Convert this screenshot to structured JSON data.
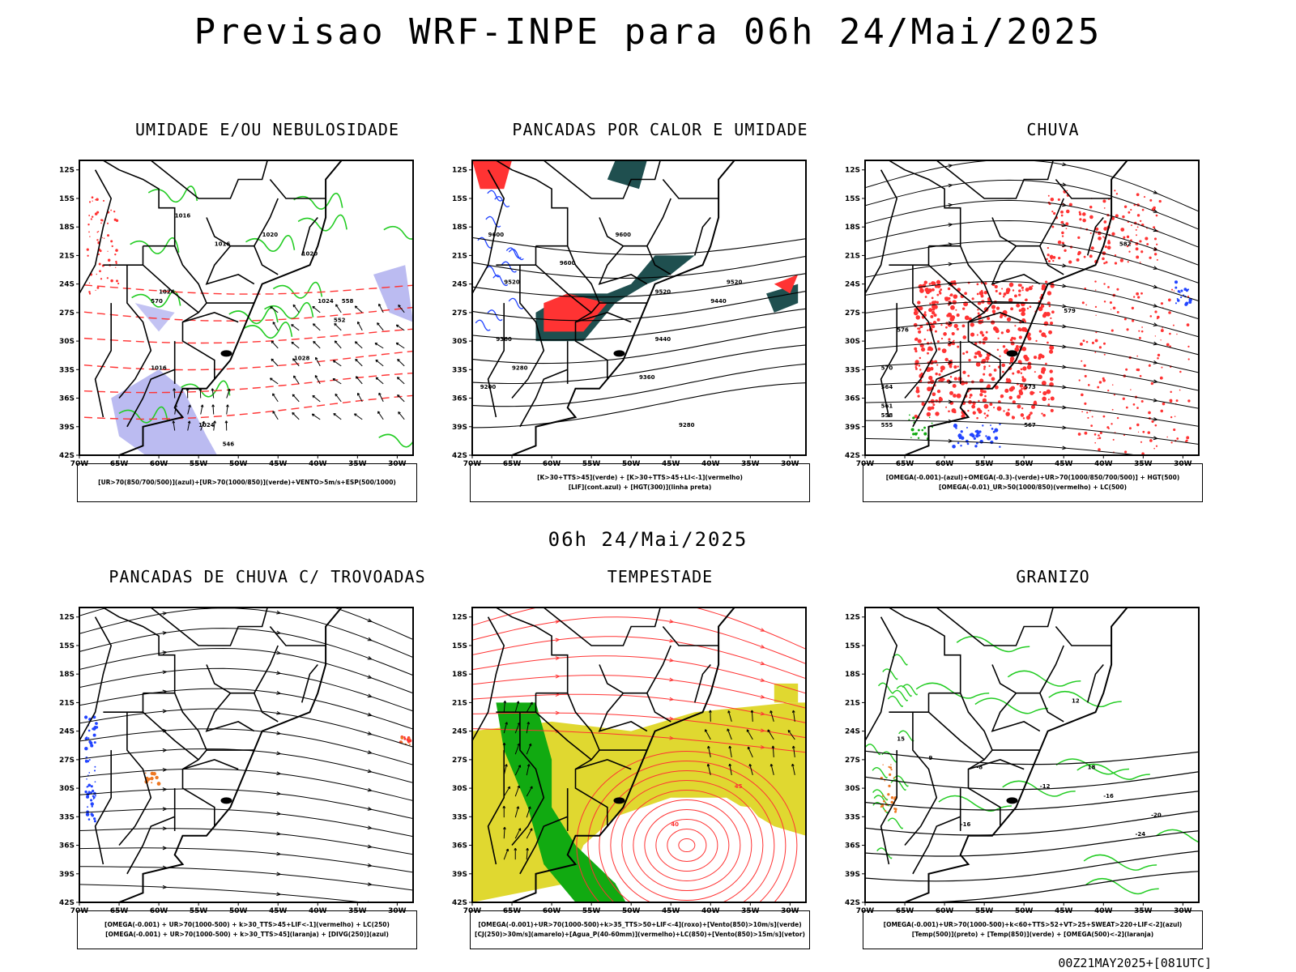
{
  "title": "Previsao WRF-INPE  para 06h 24/Mai/2025",
  "mid_title": "06h 24/Mai/2025",
  "footer": "00Z21MAY2025+[081UTC]",
  "axes": {
    "lat_labels": [
      "12S",
      "15S",
      "18S",
      "21S",
      "24S",
      "27S",
      "30S",
      "33S",
      "36S",
      "39S",
      "42S"
    ],
    "lon_labels": [
      "70W",
      "65W",
      "60W",
      "55W",
      "50W",
      "45W",
      "40W",
      "35W",
      "30W"
    ]
  },
  "colors": {
    "green": "#22cc22",
    "red": "#ff3333",
    "blue": "#2244ff",
    "lavender": "#aaaaee",
    "darkteal": "#1f4f4f",
    "yellow": "#e0d830",
    "darkgreen": "#11aa11",
    "orange": "#ee7722"
  },
  "panels": [
    {
      "title": "UMIDADE E/OU NEBULOSIDADE",
      "legend": [
        "[UR>70(850/700/500)](azul)+[UR>70(1000/850)](verde)+VENTO>5m/s+ESP(500/1000)"
      ],
      "labels": [
        "1016",
        "1016",
        "1020",
        "1020",
        "1024",
        "1024",
        "1028",
        "1016",
        "1024",
        "570",
        "558",
        "552",
        "546"
      ]
    },
    {
      "title": "PANCADAS POR CALOR E UMIDADE",
      "legend": [
        "[K>30+TTS>45](verde) + [K>30+TTS>45+LI<-1](vermelho)",
        "[LIF](cont.azul) + [HGT(300)](linha preta)"
      ],
      "labels": [
        "9600",
        "9600",
        "9600",
        "9520",
        "9520",
        "9440",
        "9440",
        "9360",
        "9360",
        "9280",
        "9280",
        "9200",
        "9520"
      ]
    },
    {
      "title": "CHUVA",
      "legend": [
        "[OMEGA(-0.001)-(azul)+OMEGA(-0.3)-(verde)+UR>70(1000/850/700/500)] + HGT(500)",
        "[OMEGA(-0.01)_UR>50(1000/850)(vermelho) + LC(500)"
      ],
      "labels": [
        "582",
        "579",
        "576",
        "573",
        "570",
        "567",
        "564",
        "561",
        "558",
        "555"
      ]
    },
    {
      "title": "PANCADAS DE CHUVA C/ TROVOADAS",
      "legend": [
        "[OMEGA(-0.001) + UR>70(1000-500) + k>30_TTS>45+LIF<-1](vermelho) + LC(250)",
        "[OMEGA(-0.001) + UR>70(1000-500) + k>30_TTS>45](laranja) + [DIVG(250)](azul)"
      ]
    },
    {
      "title": "TEMPESTADE",
      "legend": [
        "[OMEGA(-0.001)+UR>70(1000-500)+k>35_TTS>50+LIF<-4](roxo)+[Vento(850)>10m/s](verde)",
        "[CJ(250)>30m/s](amarelo)+[Agua_P(40-60mm)](vermelho)+LC(850)+[Vento(850)>15m/s](vetor)"
      ],
      "labels": [
        "45",
        "40"
      ]
    },
    {
      "title": "GRANIZO",
      "legend": [
        "[OMEGA(-0.001)+UR>70(1000-500)+k<60+TTS>52+VT>25+SWEAT>220+LIF<-2](azul)",
        "[Temp(500)](preto) + [Temp(850)](verde) + [OMEGA(500)<-2](laranja)"
      ],
      "labels": [
        "-8",
        "-12",
        "-16",
        "-16",
        "-20",
        "-24",
        "12",
        "15",
        "18",
        "9"
      ]
    }
  ]
}
